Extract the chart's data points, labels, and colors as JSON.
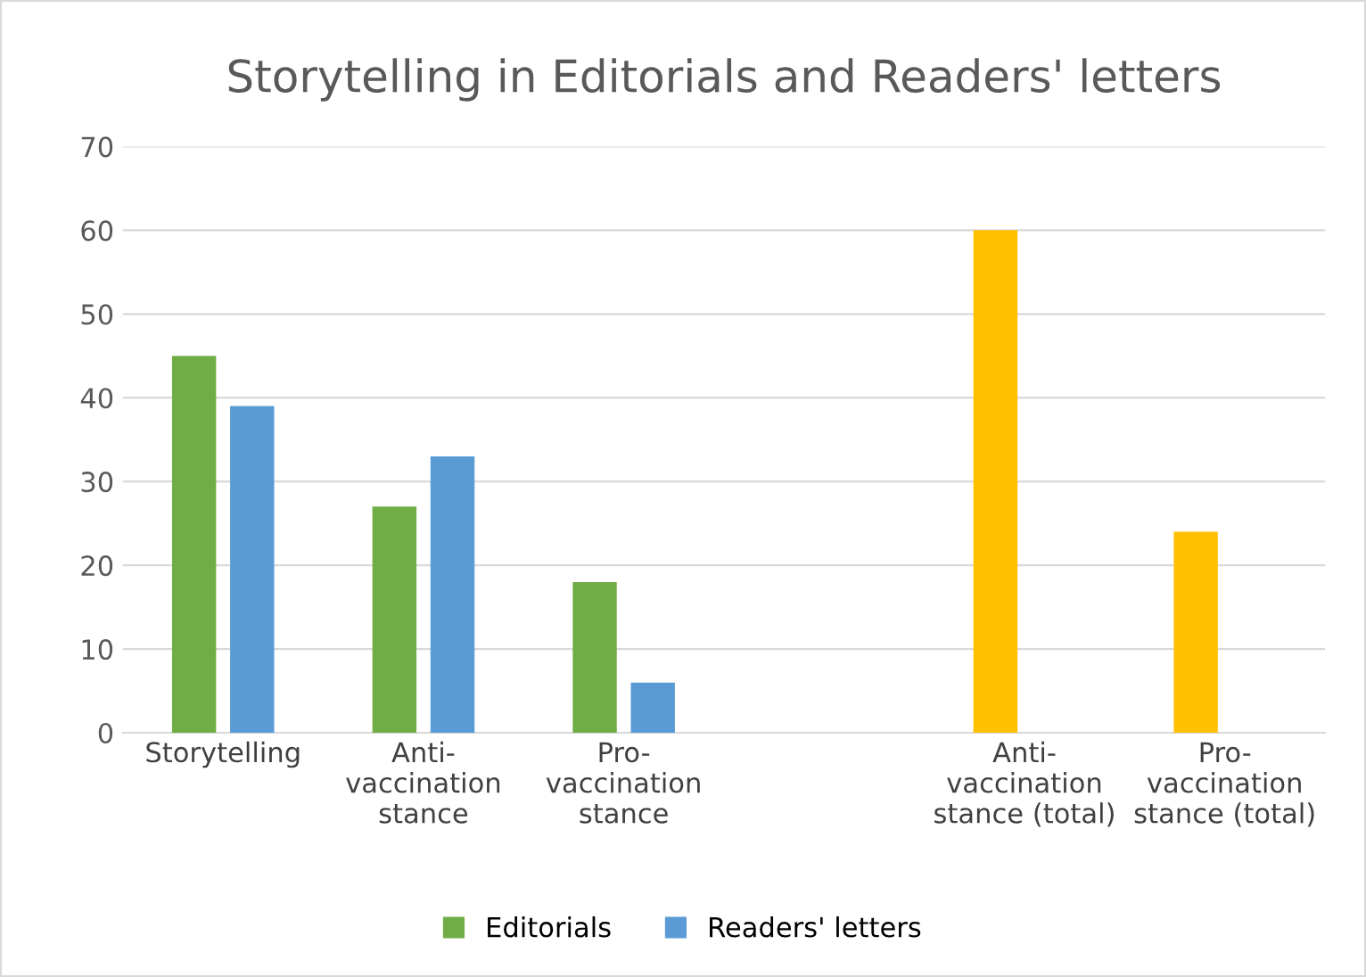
{
  "chart_data": {
    "type": "bar",
    "title": "Storytelling in Editorials and Readers' letters",
    "categories": [
      "Storytelling",
      "Anti-\nvaccination\nstance",
      "Pro-\nvaccination\nstance",
      null,
      "Anti-\nvaccination\nstance (total)",
      "Pro-\nvaccination\nstance (total)"
    ],
    "series": [
      {
        "name": "Editorials",
        "color": "#70ad47",
        "colors": [
          "#70ad47",
          "#70ad47",
          "#70ad47",
          null,
          "#ffc000",
          "#ffc000"
        ],
        "values": [
          45,
          27,
          18,
          null,
          60,
          24
        ]
      },
      {
        "name": "Readers' letters",
        "color": "#5b9bd5",
        "values": [
          39,
          33,
          6,
          null,
          null,
          null
        ]
      }
    ],
    "ylim": [
      0,
      70
    ],
    "yticks": [
      0,
      10,
      20,
      30,
      40,
      50,
      60,
      70
    ],
    "grid": "y",
    "legend": "bottom"
  }
}
